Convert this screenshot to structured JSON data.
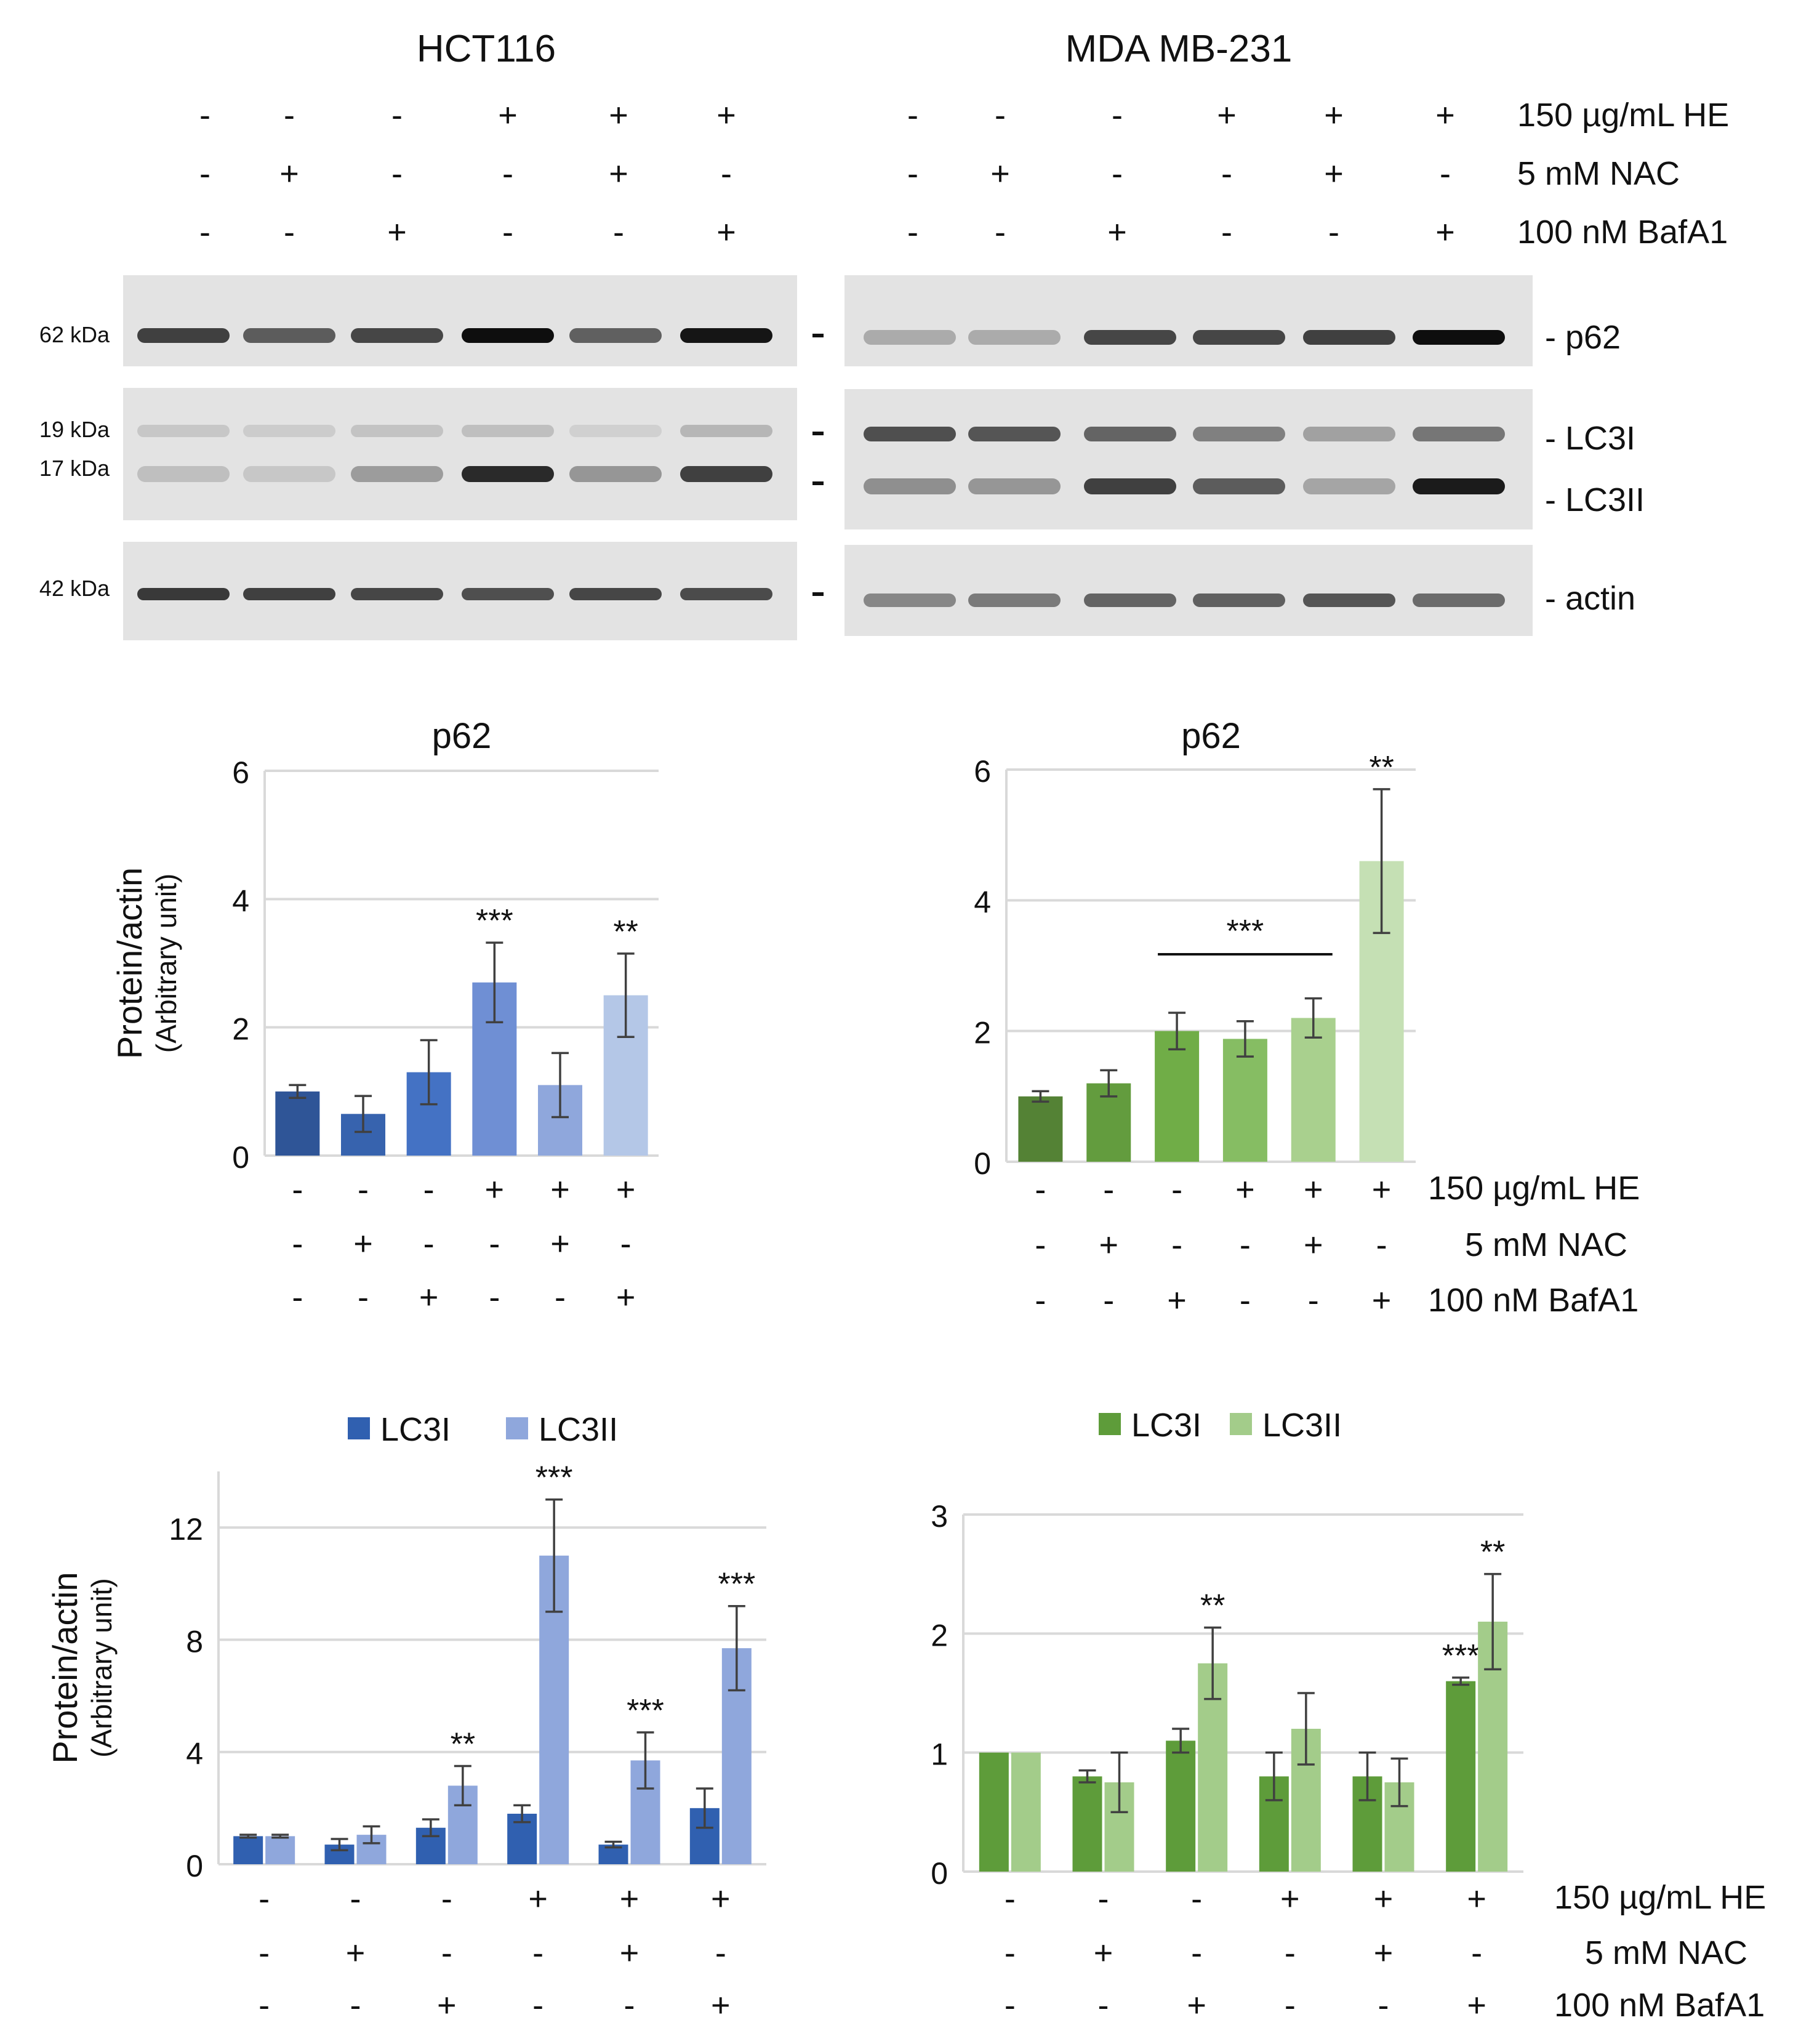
{
  "treatments": {
    "labels": [
      "150 µg/mL HE",
      "5 mM NAC",
      "100 nM BafA1"
    ],
    "HE": [
      "-",
      "-",
      "-",
      "+",
      "+",
      "+"
    ],
    "NAC": [
      "-",
      "+",
      "-",
      "-",
      "+",
      "-"
    ],
    "BafA1": [
      "-",
      "-",
      "+",
      "-",
      "-",
      "+"
    ]
  },
  "blots": {
    "cell_lines": [
      "HCT116",
      "MDA MB-231"
    ],
    "mw_markers": [
      "62 kDa",
      "19 kDa",
      "17 kDa",
      "42 kDa"
    ],
    "protein_labels": [
      "- p62",
      "- LC3I",
      "- LC3II",
      "- actin"
    ],
    "bands": {
      "hct_p62": [
        0.75,
        0.62,
        0.72,
        0.98,
        0.6,
        0.95
      ],
      "hct_lc3i": [
        0.12,
        0.1,
        0.14,
        0.16,
        0.08,
        0.2
      ],
      "hct_lc3ii": [
        0.16,
        0.12,
        0.32,
        0.85,
        0.35,
        0.75
      ],
      "hct_actin": [
        0.78,
        0.75,
        0.72,
        0.68,
        0.72,
        0.7
      ],
      "mda_p62": [
        0.25,
        0.25,
        0.72,
        0.72,
        0.75,
        0.98
      ],
      "mda_lc3i": [
        0.68,
        0.65,
        0.58,
        0.45,
        0.3,
        0.5
      ],
      "mda_lc3ii": [
        0.38,
        0.35,
        0.75,
        0.62,
        0.28,
        0.92
      ],
      "mda_actin": [
        0.42,
        0.48,
        0.58,
        0.6,
        0.65,
        0.55
      ]
    }
  },
  "chart_data": [
    {
      "type": "bar",
      "panel": "HCT116 p62",
      "title": "p62",
      "ylabel": "Protein/actin",
      "ylabel2": "(Arbitrary unit)",
      "ylim": [
        0,
        6
      ],
      "yticks": [
        "0",
        "2",
        "4",
        "6"
      ],
      "grid": true,
      "series": [
        {
          "name": "p62",
          "values": [
            1.0,
            0.65,
            1.3,
            2.7,
            1.1,
            2.5
          ],
          "errors": [
            0.1,
            0.28,
            0.5,
            0.62,
            0.5,
            0.65
          ],
          "colors": [
            "#2f5597",
            "#3763ae",
            "#4472c4",
            "#6f8fd4",
            "#8fa7dc",
            "#b4c7e7"
          ]
        }
      ],
      "annotations": [
        "",
        "",
        "",
        "***",
        "",
        "**"
      ]
    },
    {
      "type": "bar",
      "panel": "MDA MB-231 p62",
      "title": "p62",
      "ylim": [
        0,
        6
      ],
      "yticks": [
        "0",
        "2",
        "4",
        "6"
      ],
      "grid": true,
      "series": [
        {
          "name": "p62",
          "values": [
            1.0,
            1.2,
            2.0,
            1.88,
            2.2,
            4.6
          ],
          "errors": [
            0.08,
            0.2,
            0.28,
            0.27,
            0.3,
            1.1
          ],
          "colors": [
            "#548235",
            "#639c3e",
            "#70ad47",
            "#86bd63",
            "#a9d08e",
            "#c5e0b4"
          ]
        }
      ],
      "annotations": [
        "",
        "",
        "",
        "",
        "",
        "**"
      ],
      "bracket": {
        "label": "***",
        "from": 2,
        "to": 4
      }
    },
    {
      "type": "bar",
      "panel": "HCT116 LC3",
      "ylabel": "Protein/actin",
      "ylabel2": "(Arbitrary unit)",
      "ylim": [
        0,
        14
      ],
      "yticks": [
        "0",
        "4",
        "8",
        "12"
      ],
      "grid": true,
      "series": [
        {
          "name": "LC3I",
          "color": "#3060b0",
          "values": [
            1.0,
            0.7,
            1.3,
            1.8,
            0.7,
            2.0
          ],
          "errors": [
            0.05,
            0.2,
            0.3,
            0.3,
            0.1,
            0.7
          ],
          "annotations": [
            "",
            "",
            "",
            "",
            "",
            ""
          ]
        },
        {
          "name": "LC3II",
          "color": "#8fa7dc",
          "values": [
            1.0,
            1.05,
            2.8,
            11.0,
            3.7,
            7.7
          ],
          "errors": [
            0.05,
            0.3,
            0.7,
            2.0,
            1.0,
            1.5
          ],
          "annotations": [
            "",
            "",
            "**",
            "***",
            "***",
            "***"
          ]
        }
      ]
    },
    {
      "type": "bar",
      "panel": "MDA MB-231 LC3",
      "ylim": [
        0,
        3
      ],
      "yticks": [
        "0",
        "1",
        "2",
        "3"
      ],
      "grid": true,
      "series": [
        {
          "name": "LC3I",
          "color": "#5e9c3a",
          "values": [
            1.0,
            0.8,
            1.1,
            0.8,
            0.8,
            1.6
          ],
          "errors": [
            0,
            0.05,
            0.1,
            0.2,
            0.2,
            0.03
          ],
          "annotations": [
            "",
            "",
            "",
            "",
            "",
            "***"
          ]
        },
        {
          "name": "LC3II",
          "color": "#a3cc8a",
          "values": [
            1.0,
            0.75,
            1.75,
            1.2,
            0.75,
            2.1
          ],
          "errors": [
            0,
            0.25,
            0.3,
            0.3,
            0.2,
            0.4
          ],
          "annotations": [
            "",
            "",
            "**",
            "",
            "",
            "**"
          ]
        }
      ]
    }
  ]
}
